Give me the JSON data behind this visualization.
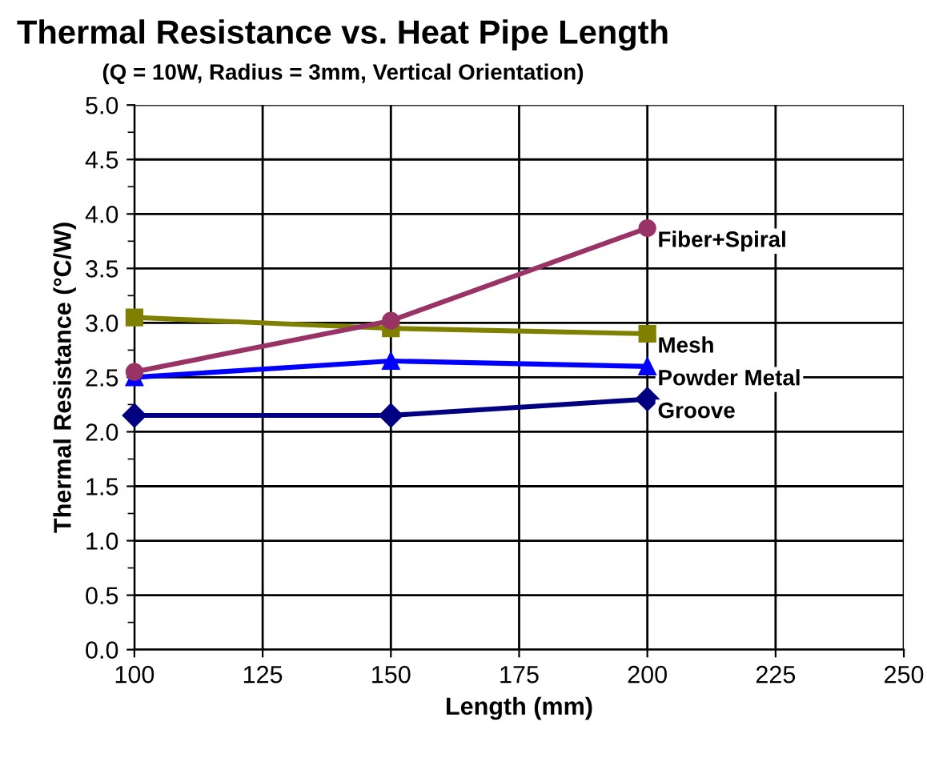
{
  "chart_data": {
    "type": "line",
    "title": "Thermal Resistance vs. Heat Pipe Length",
    "subtitle": "(Q = 10W, Radius = 3mm, Vertical Orientation)",
    "xlabel": "Length (mm)",
    "ylabel": "Thermal Resistance (°C/W)",
    "x": [
      100,
      150,
      200
    ],
    "series": [
      {
        "name": "Fiber+Spiral",
        "color": "#993366",
        "marker": "circle",
        "values": [
          2.55,
          3.02,
          3.87
        ]
      },
      {
        "name": "Mesh",
        "color": "#808000",
        "marker": "square",
        "values": [
          3.05,
          2.95,
          2.9
        ]
      },
      {
        "name": "Powder Metal",
        "color": "#0000ff",
        "marker": "triangle",
        "values": [
          2.5,
          2.65,
          2.6
        ]
      },
      {
        "name": "Groove",
        "color": "#000080",
        "marker": "diamond",
        "values": [
          2.15,
          2.15,
          2.3
        ]
      }
    ],
    "xlim": [
      100,
      250
    ],
    "xticks": [
      100,
      125,
      150,
      175,
      200,
      225,
      250
    ],
    "ylim": [
      0,
      5
    ],
    "yticks": [
      {
        "value": 0,
        "label": "0.0"
      },
      0.5,
      {
        "value": 1,
        "label": "1.0"
      },
      1.5,
      {
        "value": 2,
        "label": "2.0"
      },
      2.5,
      {
        "value": 3,
        "label": "3.0"
      },
      3.5,
      {
        "value": 4,
        "label": "4.0"
      },
      4.5,
      {
        "value": 5,
        "label": "5.0"
      }
    ],
    "grid": true,
    "legend": false
  }
}
